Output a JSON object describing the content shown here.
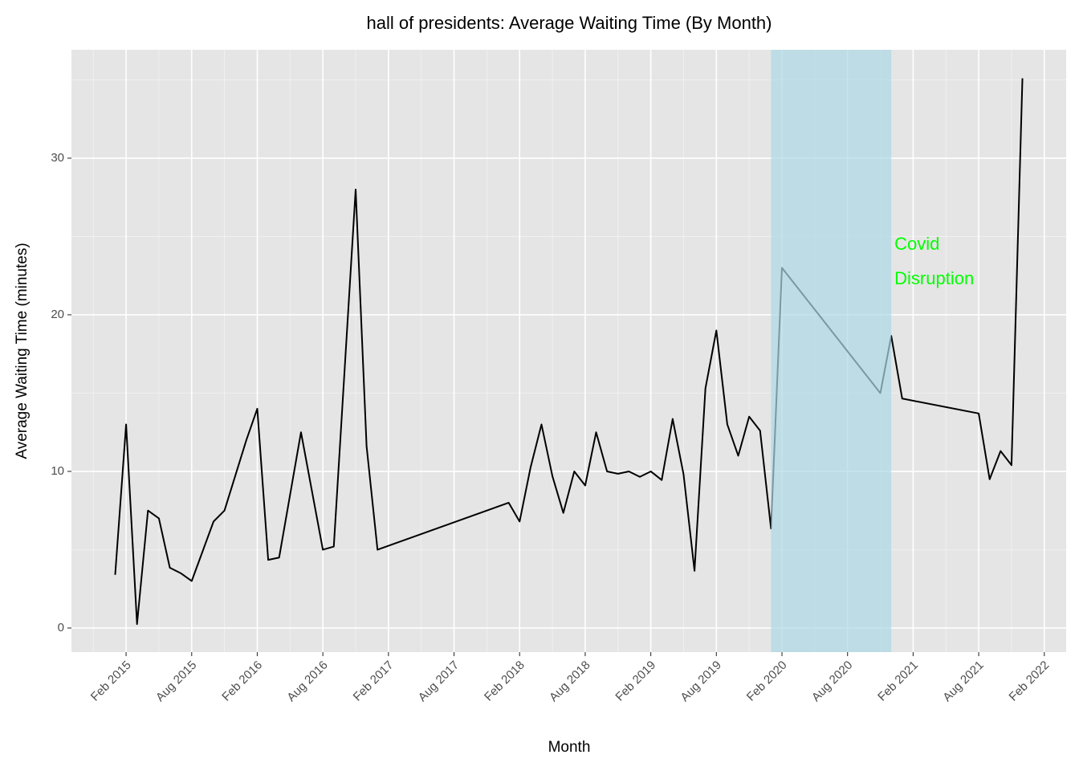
{
  "chart_data": {
    "type": "line",
    "title": "hall of presidents: Average Waiting Time (By Month)",
    "x_label": "Month",
    "y_label": "Average Waiting Time (minutes)",
    "x": [
      "2015-01",
      "2015-02",
      "2015-03",
      "2015-04",
      "2015-05",
      "2015-06",
      "2015-07",
      "2015-08",
      "2015-10",
      "2015-11",
      "2016-01",
      "2016-02",
      "2016-03",
      "2016-04",
      "2016-06",
      "2016-08",
      "2016-09",
      "2016-11",
      "2016-12",
      "2017-01",
      "2018-01",
      "2018-02",
      "2018-03",
      "2018-04",
      "2018-05",
      "2018-06",
      "2018-07",
      "2018-08",
      "2018-09",
      "2018-10",
      "2018-11",
      "2018-12",
      "2019-01",
      "2019-02",
      "2019-03",
      "2019-04",
      "2019-05",
      "2019-06",
      "2019-07",
      "2019-08",
      "2019-09",
      "2019-10",
      "2019-11",
      "2019-12",
      "2020-01",
      "2020-02",
      "2020-11",
      "2020-12",
      "2021-01",
      "2021-08",
      "2021-09",
      "2021-10",
      "2021-11",
      "2021-12"
    ],
    "series": [
      {
        "color": "#000000",
        "values": [
          3.4,
          13.0,
          0.25,
          7.5,
          7.0,
          3.85,
          3.5,
          3.0,
          6.8,
          7.5,
          12.0,
          14.0,
          4.35,
          4.5,
          12.5,
          5.0,
          5.2,
          28.0,
          11.6,
          5.0,
          8.0,
          6.8,
          10.25,
          13.0,
          9.7,
          7.35,
          10.0,
          9.1,
          12.5,
          10.0,
          9.85,
          10.0,
          9.65,
          10.0,
          9.45,
          13.35,
          9.8,
          3.65,
          15.3,
          19.0,
          13.0,
          11.0,
          13.5,
          12.6,
          6.35,
          23.0,
          15.0,
          18.65,
          14.65,
          13.7,
          9.5,
          11.3,
          10.4,
          35.1
        ]
      }
    ],
    "xlim": [
      "2014-09",
      "2022-04"
    ],
    "xticks": [
      {
        "value": "2015-02",
        "label": "Feb 2015"
      },
      {
        "value": "2015-08",
        "label": "Aug 2015"
      },
      {
        "value": "2016-02",
        "label": "Feb 2016"
      },
      {
        "value": "2016-08",
        "label": "Aug 2016"
      },
      {
        "value": "2017-02",
        "label": "Feb 2017"
      },
      {
        "value": "2017-08",
        "label": "Aug 2017"
      },
      {
        "value": "2018-02",
        "label": "Feb 2018"
      },
      {
        "value": "2018-08",
        "label": "Aug 2018"
      },
      {
        "value": "2019-02",
        "label": "Feb 2019"
      },
      {
        "value": "2019-08",
        "label": "Aug 2019"
      },
      {
        "value": "2020-02",
        "label": "Feb 2020"
      },
      {
        "value": "2020-08",
        "label": "Aug 2020"
      },
      {
        "value": "2021-02",
        "label": "Feb 2021"
      },
      {
        "value": "2021-08",
        "label": "Aug 2021"
      },
      {
        "value": "2022-02",
        "label": "Feb 2022"
      }
    ],
    "ylim": [
      -1.54,
      36.92
    ],
    "yticks": [
      0,
      10,
      20,
      30
    ],
    "grid": true,
    "highlight": {
      "xmin": "2020-01",
      "xmax": "2020-12",
      "color": "#add8e6",
      "label": [
        "Covid",
        "Disruption"
      ],
      "label_color": "#00ff00"
    }
  }
}
